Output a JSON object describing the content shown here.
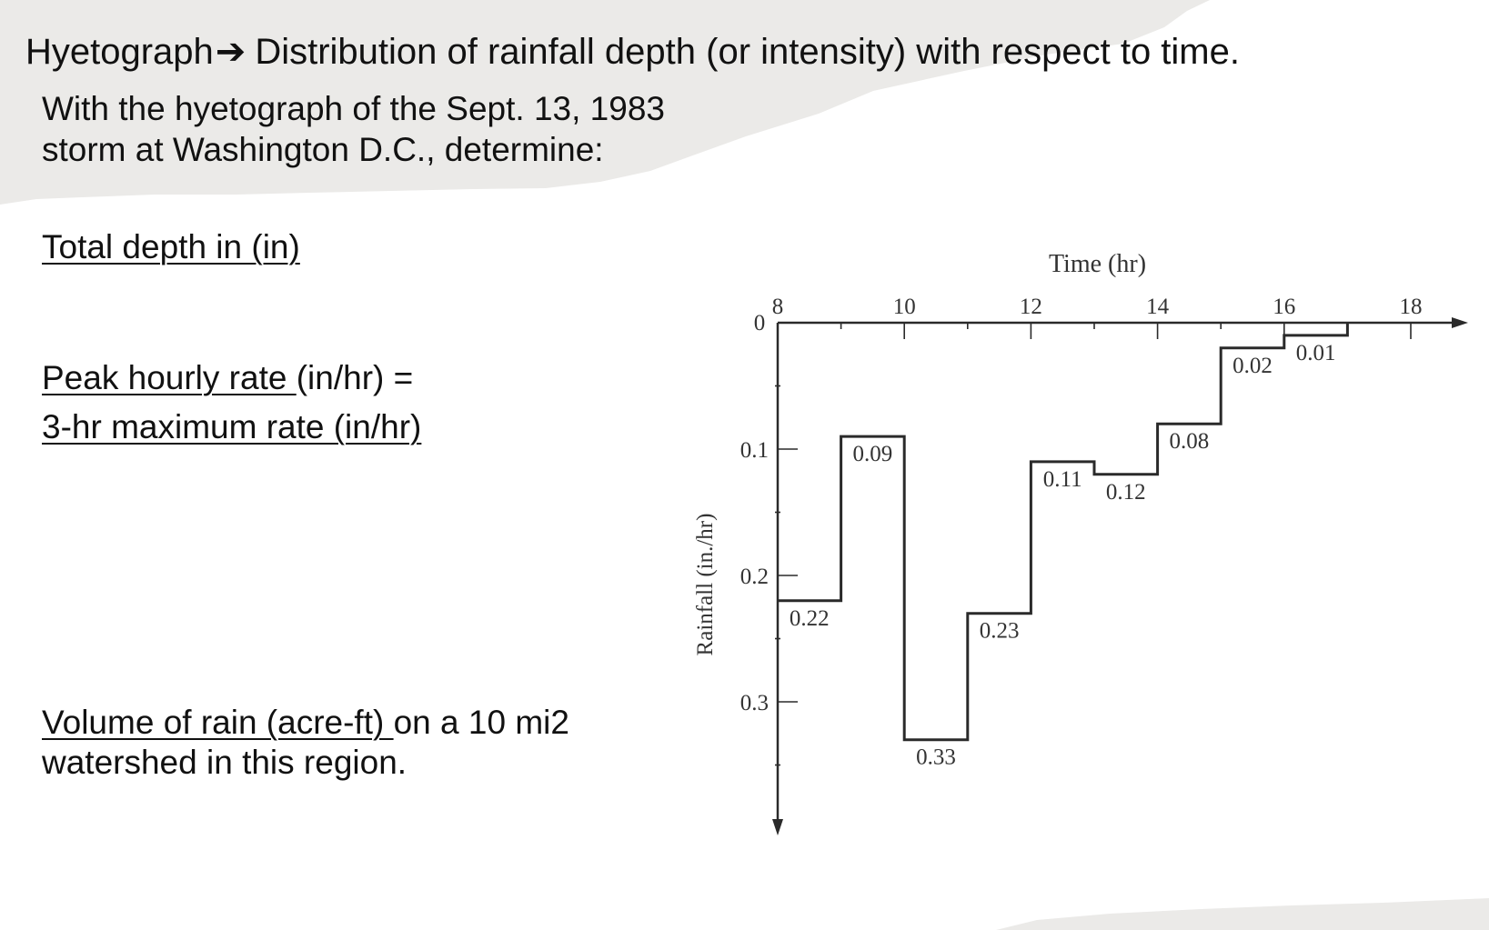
{
  "heading": {
    "term": "Hyetograph",
    "arrow": "➔",
    "definition": "Distribution of rainfall depth (or intensity) with respect to time."
  },
  "intro": {
    "line1": "With the hyetograph of the Sept. 13, 1983",
    "line2": "storm at Washington D.C., determine:"
  },
  "questions": {
    "total_depth": "Total depth in (in)",
    "peak_underlined": "Peak hourly rate ",
    "peak_rest": "(in/hr) =",
    "three_hr": "3-hr maximum rate (in/hr)",
    "volume_underlined": "Volume of rain (acre-ft) ",
    "volume_rest": "on a 10 mi2",
    "volume_line2": "watershed in this region."
  },
  "colors": {
    "paper_band": "#ebeae8",
    "chart_ink": "#2a2a2a",
    "text": "#111111"
  },
  "chart_data": {
    "type": "bar",
    "subtype": "hyetograph-step",
    "title": "",
    "xlabel": "Time (hr)",
    "ylabel": "Rainfall (in./hr)",
    "x_axis_position": "top",
    "y_axis_inverted": true,
    "xlim": [
      8,
      18
    ],
    "ylim": [
      0,
      0.4
    ],
    "origin_label": "0",
    "x_ticks": [
      8,
      10,
      12,
      14,
      16,
      18
    ],
    "y_ticks": [
      0.1,
      0.2,
      0.3
    ],
    "x_tick_labels": [
      "8",
      "10",
      "12",
      "14",
      "16",
      "18"
    ],
    "y_tick_labels": [
      "0.1",
      "0.2",
      "0.3"
    ],
    "grid": false,
    "bins": [
      {
        "start": 8,
        "end": 9,
        "value": 0.22,
        "label": "0.22"
      },
      {
        "start": 9,
        "end": 10,
        "value": 0.09,
        "label": "0.09"
      },
      {
        "start": 10,
        "end": 11,
        "value": 0.33,
        "label": "0.33"
      },
      {
        "start": 11,
        "end": 12,
        "value": 0.23,
        "label": "0.23"
      },
      {
        "start": 12,
        "end": 13,
        "value": 0.11,
        "label": "0.11"
      },
      {
        "start": 13,
        "end": 14,
        "value": 0.12,
        "label": "0.12"
      },
      {
        "start": 14,
        "end": 15,
        "value": 0.08,
        "label": "0.08"
      },
      {
        "start": 15,
        "end": 16,
        "value": 0.02,
        "label": "0.02"
      },
      {
        "start": 16,
        "end": 17,
        "value": 0.01,
        "label": "0.01"
      }
    ]
  }
}
